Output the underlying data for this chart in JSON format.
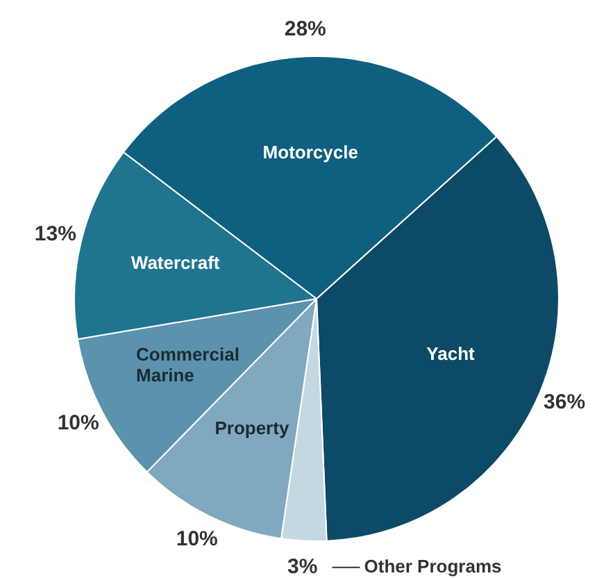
{
  "chart_data": {
    "type": "pie",
    "categories": [
      "Yacht",
      "Other Programs",
      "Property",
      "Commercial Marine",
      "Watercraft",
      "Motorcycle"
    ],
    "values": [
      36,
      3,
      10,
      10,
      13,
      28
    ],
    "colors": [
      "#0c4a68",
      "#c4d8e2",
      "#80a9c0",
      "#5b93ad",
      "#1f7490",
      "#0f5f80"
    ],
    "value_labels": [
      "36%",
      "3%",
      "10%",
      "10%",
      "13%",
      "28%"
    ],
    "legend": false
  }
}
